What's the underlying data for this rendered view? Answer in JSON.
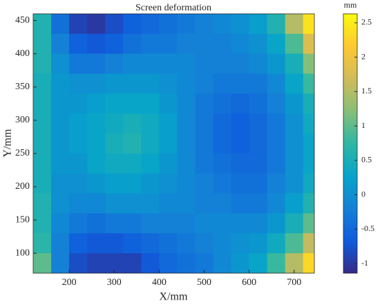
{
  "chart_data": {
    "type": "heatmap",
    "title": "Screen deformation",
    "x_label": "X/mm",
    "y_label": "Y/mm",
    "colorbar_label": "mm",
    "x": [
      140,
      180,
      220,
      260,
      300,
      340,
      380,
      420,
      460,
      500,
      540,
      580,
      620,
      660,
      700,
      740
    ],
    "y": [
      445,
      415,
      385,
      355,
      325,
      295,
      265,
      235,
      205,
      175,
      145,
      115,
      85
    ],
    "values": [
      [
        0.6,
        -0.4,
        -0.9,
        -1.0,
        -0.8,
        -0.6,
        -0.5,
        -0.4,
        -0.3,
        -0.2,
        -0.1,
        0.0,
        0.2,
        0.6,
        1.5,
        2.4
      ],
      [
        0.6,
        -0.2,
        -0.6,
        -0.7,
        -0.6,
        -0.4,
        -0.3,
        -0.3,
        -0.2,
        -0.2,
        -0.2,
        -0.1,
        0.0,
        0.3,
        0.9,
        1.8
      ],
      [
        0.6,
        0.0,
        -0.3,
        -0.3,
        -0.2,
        -0.1,
        -0.1,
        -0.1,
        -0.1,
        -0.2,
        -0.2,
        -0.2,
        -0.1,
        0.1,
        0.5,
        1.2
      ],
      [
        0.5,
        0.1,
        0.0,
        0.0,
        0.1,
        0.1,
        0.1,
        0.0,
        -0.1,
        -0.2,
        -0.3,
        -0.3,
        -0.3,
        -0.1,
        0.3,
        0.8
      ],
      [
        0.5,
        0.1,
        0.1,
        0.2,
        0.3,
        0.3,
        0.3,
        0.1,
        -0.1,
        -0.3,
        -0.4,
        -0.5,
        -0.4,
        -0.2,
        0.1,
        0.5
      ],
      [
        0.5,
        0.1,
        0.2,
        0.3,
        0.4,
        0.5,
        0.4,
        0.2,
        -0.1,
        -0.3,
        -0.5,
        -0.6,
        -0.5,
        -0.3,
        0.0,
        0.4
      ],
      [
        0.5,
        0.1,
        0.2,
        0.3,
        0.5,
        0.6,
        0.4,
        0.2,
        -0.1,
        -0.3,
        -0.5,
        -0.6,
        -0.5,
        -0.3,
        0.0,
        0.3
      ],
      [
        0.5,
        0.1,
        0.1,
        0.3,
        0.4,
        0.4,
        0.3,
        0.1,
        -0.1,
        -0.3,
        -0.4,
        -0.5,
        -0.5,
        -0.3,
        0.0,
        0.3
      ],
      [
        0.5,
        0.0,
        0.0,
        0.1,
        0.2,
        0.2,
        0.1,
        0.0,
        -0.1,
        -0.2,
        -0.3,
        -0.4,
        -0.4,
        -0.2,
        0.0,
        0.4
      ],
      [
        0.6,
        0.0,
        -0.1,
        -0.1,
        0.0,
        0.0,
        0.0,
        -0.1,
        -0.1,
        -0.2,
        -0.2,
        -0.3,
        -0.3,
        -0.1,
        0.2,
        0.6
      ],
      [
        0.6,
        -0.1,
        -0.3,
        -0.4,
        -0.3,
        -0.3,
        -0.2,
        -0.2,
        -0.2,
        -0.1,
        -0.1,
        -0.1,
        -0.1,
        0.1,
        0.5,
        1.0
      ],
      [
        0.7,
        -0.2,
        -0.6,
        -0.7,
        -0.7,
        -0.6,
        -0.5,
        -0.4,
        -0.3,
        -0.2,
        -0.1,
        0.0,
        0.1,
        0.4,
        0.9,
        1.6
      ],
      [
        1.0,
        -0.2,
        -0.8,
        -0.9,
        -0.9,
        -0.9,
        -0.7,
        -0.5,
        -0.4,
        -0.3,
        -0.1,
        0.1,
        0.3,
        0.8,
        1.5,
        2.3
      ]
    ],
    "xlim": [
      120,
      745
    ],
    "ylim": [
      70,
      460
    ],
    "xticks": [
      200,
      300,
      400,
      500,
      600,
      700
    ],
    "yticks": [
      100,
      150,
      200,
      250,
      300,
      350,
      400,
      450
    ],
    "clim": [
      -1.14,
      2.63
    ],
    "cticks": [
      -1,
      -0.5,
      0,
      0.5,
      1,
      1.5,
      2,
      2.5
    ],
    "colormap": [
      "#352a87",
      "#0f5cdd",
      "#1481d6",
      "#06a4ca",
      "#2eb7a4",
      "#87bf77",
      "#d1bb59",
      "#fec832",
      "#f9fb0e"
    ]
  }
}
